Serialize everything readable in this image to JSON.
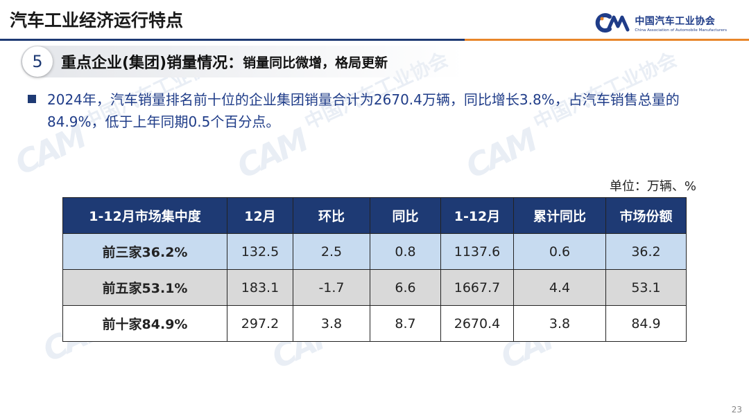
{
  "header": {
    "title": "汽车工业经济运行特点",
    "brand_cn": "中国汽车工业协会",
    "brand_en": "China Association of Automobile Manufacturers",
    "colors": {
      "navy": "#1e3a74",
      "orange": "#e8862a"
    }
  },
  "section": {
    "number": "5",
    "title": "重点企业(集团)销量情况：",
    "subtitle": "销量同比微增，格局更新"
  },
  "bullet": {
    "text": "2024年，汽车销量排名前十位的企业集团销量合计为2670.4万辆，同比增长3.8%，占汽车销售总量的84.9%，低于上年同期0.5个百分点。"
  },
  "unit": "单位：万辆、%",
  "table": {
    "headers": [
      "1-12月市场集中度",
      "12月",
      "环比",
      "同比",
      "1-12月",
      "累计同比",
      "市场份额"
    ],
    "rows": [
      [
        "前三家36.2%",
        "132.5",
        "2.5",
        "0.8",
        "1137.6",
        "0.6",
        "36.2"
      ],
      [
        "前五家53.1%",
        "183.1",
        "-1.7",
        "6.6",
        "1667.7",
        "4.4",
        "53.1"
      ],
      [
        "前十家84.9%",
        "297.2",
        "3.8",
        "8.7",
        "2670.4",
        "3.8",
        "84.9"
      ]
    ]
  },
  "page_number": "23"
}
